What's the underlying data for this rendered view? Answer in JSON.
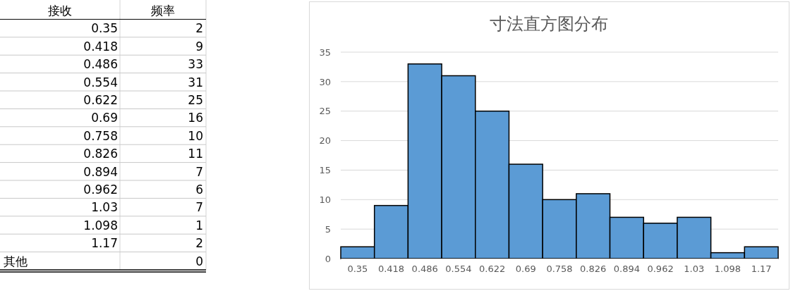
{
  "chart_data": [
    {
      "type": "other",
      "xlabel": "接收",
      "ylabel": "频率",
      "categories": [
        "0.35",
        "0.418",
        "0.486",
        "0.554",
        "0.622",
        "0.69",
        "0.758",
        "0.826",
        "0.894",
        "0.962",
        "1.03",
        "1.098",
        "1.17",
        "其他"
      ],
      "values": [
        2,
        9,
        33,
        31,
        25,
        16,
        10,
        11,
        7,
        6,
        7,
        1,
        2,
        0
      ],
      "data_labels": true
    },
    {
      "type": "bar",
      "title": "寸法直方图分布",
      "categories": [
        "0.35",
        "0.418",
        "0.486",
        "0.554",
        "0.622",
        "0.69",
        "0.758",
        "0.826",
        "0.894",
        "0.962",
        "1.03",
        "1.098",
        "1.17"
      ],
      "values": [
        2,
        9,
        33,
        31,
        25,
        16,
        10,
        11,
        7,
        6,
        7,
        1,
        2
      ],
      "color": "#5b9bd5",
      "ylim": [
        0,
        35
      ],
      "yticks": [
        0,
        5,
        10,
        15,
        20,
        25,
        30,
        35
      ],
      "grid": "y"
    }
  ]
}
